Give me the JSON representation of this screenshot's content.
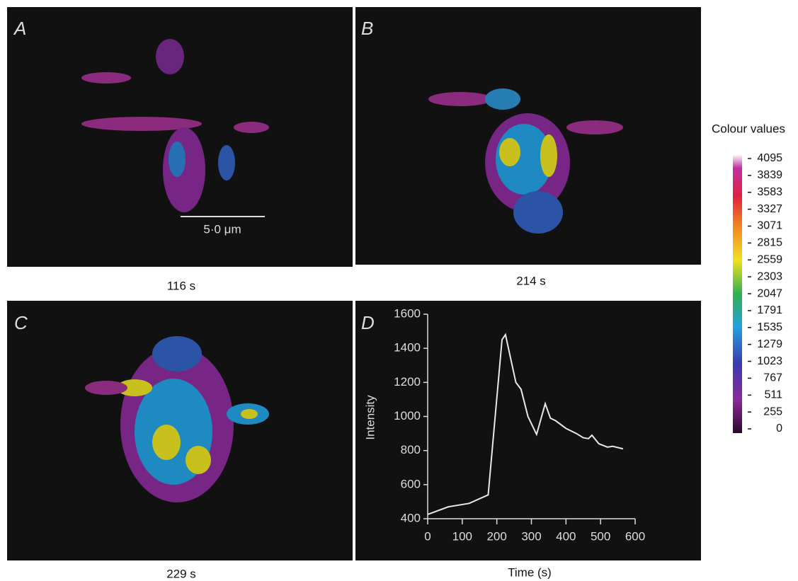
{
  "panels": [
    {
      "letter": "A",
      "caption": "116 s",
      "scale_bar": "5·0 μm"
    },
    {
      "letter": "B",
      "caption": "214 s"
    },
    {
      "letter": "C",
      "caption": "229 s"
    },
    {
      "letter": "D"
    }
  ],
  "colorbar": {
    "title": "Colour values",
    "lim": [
      0,
      4095
    ],
    "ticks": [
      0,
      255,
      511,
      767,
      1023,
      1279,
      1535,
      1791,
      2047,
      2303,
      2559,
      2815,
      3071,
      3327,
      3583,
      3839,
      4095
    ]
  },
  "chart_data": {
    "type": "line",
    "xlabel": "Time (s)",
    "ylabel": "Intensity",
    "xlim": [
      0,
      600
    ],
    "ylim": [
      400,
      1600
    ],
    "xticks": [
      0,
      100,
      200,
      300,
      400,
      500,
      600
    ],
    "yticks": [
      400,
      600,
      800,
      1000,
      1200,
      1400,
      1600
    ],
    "color": "#e8e8e8",
    "x": [
      0,
      60,
      120,
      175,
      215,
      225,
      255,
      270,
      290,
      315,
      340,
      355,
      370,
      400,
      430,
      450,
      465,
      475,
      495,
      520,
      535,
      565
    ],
    "values": [
      425,
      470,
      490,
      540,
      1450,
      1480,
      1200,
      1160,
      1000,
      895,
      1075,
      990,
      975,
      930,
      900,
      875,
      870,
      890,
      840,
      820,
      825,
      810
    ]
  }
}
